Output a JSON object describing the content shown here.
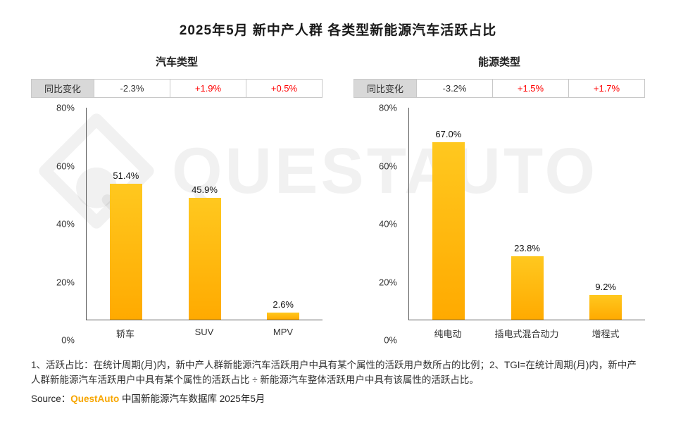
{
  "page": {
    "title": "2025年5月 新中产人群 各类型新能源汽车活跃占比",
    "watermark": "QUESTAUTO",
    "footnote": "1、活跃占比：在统计周期(月)内，新中产人群新能源汽车活跃用户中具有某个属性的活跃用户数所占的比例；2、TGI=在统计周期(月)内，新中产人群新能源汽车活跃用户中具有某个属性的活跃占比 ÷ 新能源汽车整体活跃用户中具有该属性的活跃占比。",
    "source": {
      "prefix": "Source：",
      "brand": "QuestAuto",
      "suffix": " 中国新能源汽车数据库 2025年5月"
    }
  },
  "colors": {
    "bar_top": "#FFC81F",
    "bar_bottom": "#FFAA00",
    "yoy_down": "#333333",
    "yoy_up": "#FF0000",
    "brand": "#F7A600"
  },
  "chart_data": [
    {
      "type": "bar",
      "title": "汽车类型",
      "yoy_label": "同比变化",
      "yoy": [
        {
          "value": "-2.3%",
          "direction": "down"
        },
        {
          "value": "+1.9%",
          "direction": "up"
        },
        {
          "value": "+0.5%",
          "direction": "up"
        }
      ],
      "categories": [
        "轿车",
        "SUV",
        "MPV"
      ],
      "values": [
        51.4,
        45.9,
        2.6
      ],
      "value_labels": [
        "51.4%",
        "45.9%",
        "2.6%"
      ],
      "ylabel": "",
      "xlabel": "",
      "ylim": [
        0,
        80
      ],
      "yticks": [
        "0%",
        "20%",
        "40%",
        "60%",
        "80%"
      ],
      "grid": false,
      "legend": false
    },
    {
      "type": "bar",
      "title": "能源类型",
      "yoy_label": "同比变化",
      "yoy": [
        {
          "value": "-3.2%",
          "direction": "down"
        },
        {
          "value": "+1.5%",
          "direction": "up"
        },
        {
          "value": "+1.7%",
          "direction": "up"
        }
      ],
      "categories": [
        "纯电动",
        "插电式混合动力",
        "增程式"
      ],
      "values": [
        67.0,
        23.8,
        9.2
      ],
      "value_labels": [
        "67.0%",
        "23.8%",
        "9.2%"
      ],
      "ylabel": "",
      "xlabel": "",
      "ylim": [
        0,
        80
      ],
      "yticks": [
        "0%",
        "20%",
        "40%",
        "60%",
        "80%"
      ],
      "grid": false,
      "legend": false
    }
  ]
}
